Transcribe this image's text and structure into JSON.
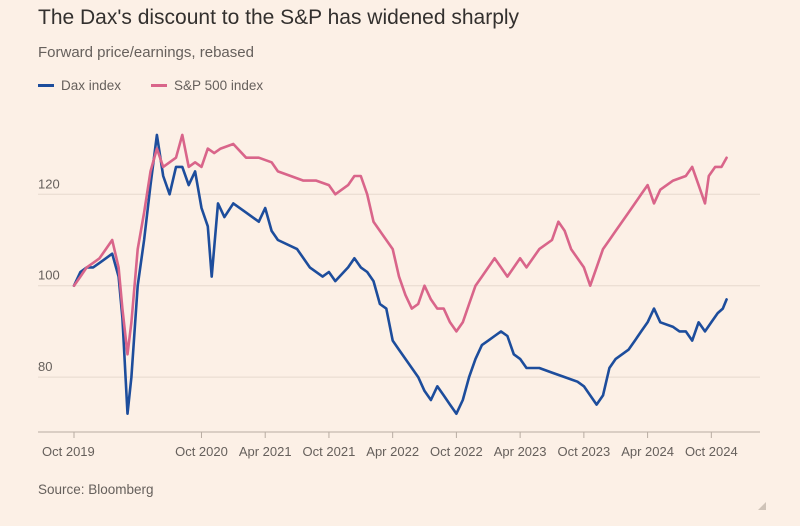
{
  "title": "The Dax's discount to the S&P has widened sharply",
  "subtitle": "Forward price/earnings, rebased",
  "source": "Source: Bloomberg",
  "colors": {
    "dax": "#1d4d9c",
    "sp500": "#d9658a",
    "grid": "#e6d9ce",
    "axis": "#66605c",
    "background": "#fcf0e6"
  },
  "chart_data": {
    "type": "line",
    "xlim": [
      2019.75,
      2024.92
    ],
    "ylim": [
      68,
      138
    ],
    "yticks": [
      80,
      100,
      120
    ],
    "xticks": [
      {
        "label": "Oct 2019",
        "x": 2019.75
      },
      {
        "label": "Oct 2020",
        "x": 2020.75
      },
      {
        "label": "Apr 2021",
        "x": 2021.25
      },
      {
        "label": "Oct 2021",
        "x": 2021.75
      },
      {
        "label": "Apr 2022",
        "x": 2022.25
      },
      {
        "label": "Oct 2022",
        "x": 2022.75
      },
      {
        "label": "Apr 2023",
        "x": 2023.25
      },
      {
        "label": "Oct 2023",
        "x": 2023.75
      },
      {
        "label": "Apr 2024",
        "x": 2024.25
      },
      {
        "label": "Oct 2024",
        "x": 2024.75
      }
    ],
    "grid": true,
    "legend_position": "top-left",
    "series": [
      {
        "name": "Dax index",
        "color": "#1d4d9c",
        "points": [
          [
            2019.75,
            100
          ],
          [
            2019.8,
            103
          ],
          [
            2019.85,
            104
          ],
          [
            2019.9,
            104
          ],
          [
            2019.95,
            105
          ],
          [
            2020.0,
            106
          ],
          [
            2020.05,
            107
          ],
          [
            2020.1,
            102
          ],
          [
            2020.13,
            93
          ],
          [
            2020.17,
            72
          ],
          [
            2020.2,
            80
          ],
          [
            2020.25,
            100
          ],
          [
            2020.3,
            110
          ],
          [
            2020.35,
            122
          ],
          [
            2020.4,
            133
          ],
          [
            2020.45,
            124
          ],
          [
            2020.5,
            120
          ],
          [
            2020.55,
            126
          ],
          [
            2020.6,
            126
          ],
          [
            2020.65,
            122
          ],
          [
            2020.7,
            125
          ],
          [
            2020.75,
            117
          ],
          [
            2020.8,
            113
          ],
          [
            2020.83,
            102
          ],
          [
            2020.88,
            118
          ],
          [
            2020.93,
            115
          ],
          [
            2021.0,
            118
          ],
          [
            2021.1,
            116
          ],
          [
            2021.2,
            114
          ],
          [
            2021.25,
            117
          ],
          [
            2021.3,
            112
          ],
          [
            2021.35,
            110
          ],
          [
            2021.5,
            108
          ],
          [
            2021.6,
            104
          ],
          [
            2021.7,
            102
          ],
          [
            2021.75,
            103
          ],
          [
            2021.8,
            101
          ],
          [
            2021.9,
            104
          ],
          [
            2021.95,
            106
          ],
          [
            2022.0,
            104
          ],
          [
            2022.05,
            103
          ],
          [
            2022.1,
            101
          ],
          [
            2022.15,
            96
          ],
          [
            2022.2,
            95
          ],
          [
            2022.25,
            88
          ],
          [
            2022.3,
            86
          ],
          [
            2022.35,
            84
          ],
          [
            2022.4,
            82
          ],
          [
            2022.45,
            80
          ],
          [
            2022.5,
            77
          ],
          [
            2022.55,
            75
          ],
          [
            2022.6,
            78
          ],
          [
            2022.65,
            76
          ],
          [
            2022.7,
            74
          ],
          [
            2022.75,
            72
          ],
          [
            2022.8,
            75
          ],
          [
            2022.85,
            80
          ],
          [
            2022.9,
            84
          ],
          [
            2022.95,
            87
          ],
          [
            2023.0,
            88
          ],
          [
            2023.05,
            89
          ],
          [
            2023.1,
            90
          ],
          [
            2023.15,
            89
          ],
          [
            2023.2,
            85
          ],
          [
            2023.25,
            84
          ],
          [
            2023.3,
            82
          ],
          [
            2023.4,
            82
          ],
          [
            2023.5,
            81
          ],
          [
            2023.6,
            80
          ],
          [
            2023.7,
            79
          ],
          [
            2023.75,
            78
          ],
          [
            2023.8,
            76
          ],
          [
            2023.85,
            74
          ],
          [
            2023.9,
            76
          ],
          [
            2023.95,
            82
          ],
          [
            2024.0,
            84
          ],
          [
            2024.1,
            86
          ],
          [
            2024.15,
            88
          ],
          [
            2024.2,
            90
          ],
          [
            2024.25,
            92
          ],
          [
            2024.3,
            95
          ],
          [
            2024.35,
            92
          ],
          [
            2024.45,
            91
          ],
          [
            2024.5,
            90
          ],
          [
            2024.55,
            90
          ],
          [
            2024.6,
            88
          ],
          [
            2024.65,
            92
          ],
          [
            2024.7,
            90
          ],
          [
            2024.75,
            92
          ],
          [
            2024.8,
            94
          ],
          [
            2024.84,
            95
          ],
          [
            2024.87,
            97
          ]
        ]
      },
      {
        "name": "S&P 500 index",
        "color": "#d9658a",
        "points": [
          [
            2019.75,
            100
          ],
          [
            2019.8,
            102
          ],
          [
            2019.85,
            104
          ],
          [
            2019.9,
            105
          ],
          [
            2019.95,
            106
          ],
          [
            2020.0,
            108
          ],
          [
            2020.05,
            110
          ],
          [
            2020.1,
            104
          ],
          [
            2020.13,
            95
          ],
          [
            2020.17,
            85
          ],
          [
            2020.2,
            92
          ],
          [
            2020.25,
            108
          ],
          [
            2020.3,
            116
          ],
          [
            2020.35,
            125
          ],
          [
            2020.4,
            130
          ],
          [
            2020.45,
            126
          ],
          [
            2020.5,
            127
          ],
          [
            2020.55,
            128
          ],
          [
            2020.6,
            133
          ],
          [
            2020.65,
            126
          ],
          [
            2020.7,
            127
          ],
          [
            2020.75,
            126
          ],
          [
            2020.8,
            130
          ],
          [
            2020.85,
            129
          ],
          [
            2020.9,
            130
          ],
          [
            2021.0,
            131
          ],
          [
            2021.1,
            128
          ],
          [
            2021.2,
            128
          ],
          [
            2021.3,
            127
          ],
          [
            2021.35,
            125
          ],
          [
            2021.45,
            124
          ],
          [
            2021.55,
            123
          ],
          [
            2021.65,
            123
          ],
          [
            2021.75,
            122
          ],
          [
            2021.8,
            120
          ],
          [
            2021.9,
            122
          ],
          [
            2021.95,
            124
          ],
          [
            2022.0,
            124
          ],
          [
            2022.05,
            120
          ],
          [
            2022.1,
            114
          ],
          [
            2022.15,
            112
          ],
          [
            2022.2,
            110
          ],
          [
            2022.25,
            108
          ],
          [
            2022.3,
            102
          ],
          [
            2022.35,
            98
          ],
          [
            2022.4,
            95
          ],
          [
            2022.45,
            96
          ],
          [
            2022.5,
            100
          ],
          [
            2022.55,
            97
          ],
          [
            2022.6,
            95
          ],
          [
            2022.65,
            95
          ],
          [
            2022.7,
            92
          ],
          [
            2022.75,
            90
          ],
          [
            2022.8,
            92
          ],
          [
            2022.85,
            96
          ],
          [
            2022.9,
            100
          ],
          [
            2022.95,
            102
          ],
          [
            2023.0,
            104
          ],
          [
            2023.05,
            106
          ],
          [
            2023.1,
            104
          ],
          [
            2023.15,
            102
          ],
          [
            2023.2,
            104
          ],
          [
            2023.25,
            106
          ],
          [
            2023.3,
            104
          ],
          [
            2023.4,
            108
          ],
          [
            2023.5,
            110
          ],
          [
            2023.55,
            114
          ],
          [
            2023.6,
            112
          ],
          [
            2023.65,
            108
          ],
          [
            2023.7,
            106
          ],
          [
            2023.75,
            104
          ],
          [
            2023.8,
            100
          ],
          [
            2023.85,
            104
          ],
          [
            2023.9,
            108
          ],
          [
            2023.95,
            110
          ],
          [
            2024.0,
            112
          ],
          [
            2024.05,
            114
          ],
          [
            2024.1,
            116
          ],
          [
            2024.15,
            118
          ],
          [
            2024.2,
            120
          ],
          [
            2024.25,
            122
          ],
          [
            2024.3,
            118
          ],
          [
            2024.35,
            121
          ],
          [
            2024.45,
            123
          ],
          [
            2024.55,
            124
          ],
          [
            2024.6,
            126
          ],
          [
            2024.65,
            122
          ],
          [
            2024.7,
            118
          ],
          [
            2024.73,
            124
          ],
          [
            2024.78,
            126
          ],
          [
            2024.83,
            126
          ],
          [
            2024.87,
            128
          ]
        ]
      }
    ]
  }
}
